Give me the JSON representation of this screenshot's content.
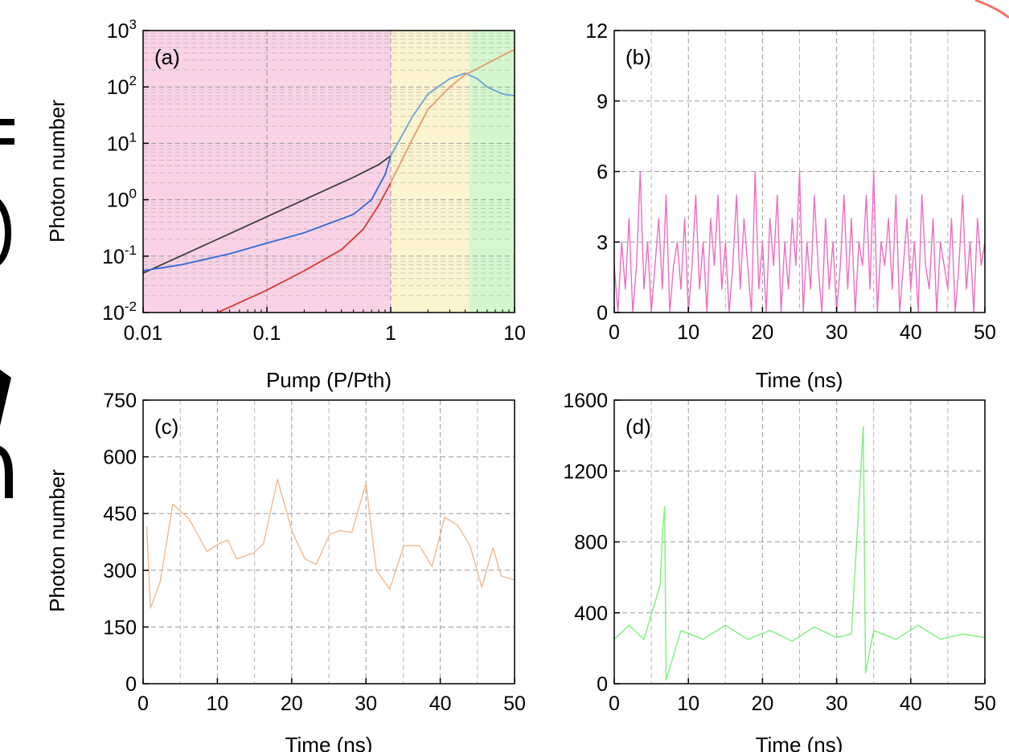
{
  "figure": {
    "panels": [
      {
        "id": "a",
        "label": "(a)",
        "ylabel": "Photon number",
        "xlabel": "Pump (P/Pth)",
        "xticks": [
          "0.01",
          "0.1",
          "1",
          "10"
        ],
        "ytick_exponents": [
          "-2",
          "-1",
          "0",
          "1",
          "2",
          "3"
        ]
      },
      {
        "id": "b",
        "label": "(b)",
        "ylabel": "",
        "xlabel": "Time (ns)",
        "xticks": [
          "0",
          "10",
          "20",
          "30",
          "40",
          "50"
        ],
        "yticks": [
          "0",
          "3",
          "6",
          "9",
          "12"
        ]
      },
      {
        "id": "c",
        "label": "(c)",
        "ylabel": "Photon number",
        "xlabel": "Time (ns)",
        "xticks": [
          "0",
          "10",
          "20",
          "30",
          "40",
          "50"
        ],
        "yticks": [
          "0",
          "150",
          "300",
          "450",
          "600",
          "750"
        ]
      },
      {
        "id": "d",
        "label": "(d)",
        "ylabel": "",
        "xlabel": "Time (ns)",
        "xticks": [
          "0",
          "10",
          "20",
          "30",
          "40",
          "50"
        ],
        "yticks": [
          "0",
          "400",
          "800",
          "1200",
          "1600"
        ]
      }
    ]
  },
  "chart_data": [
    {
      "type": "line",
      "panel": "a",
      "xscale": "log",
      "yscale": "log",
      "xlim": [
        0.01,
        10
      ],
      "ylim": [
        0.01,
        1000
      ],
      "grid": true,
      "regions": [
        {
          "x": [
            0.01,
            1
          ],
          "color": "#f9d2e6"
        },
        {
          "x": [
            1,
            4.3
          ],
          "color": "#fbf4cf"
        },
        {
          "x": [
            4.3,
            10
          ],
          "color": "#d4f7cf"
        }
      ],
      "series": [
        {
          "color": "#3f3f3f",
          "x": [
            0.01,
            0.02,
            0.05,
            0.1,
            0.2,
            0.5,
            0.8,
            1.0
          ],
          "y": [
            0.05,
            0.1,
            0.25,
            0.5,
            1.0,
            2.5,
            4.2,
            6.0
          ]
        },
        {
          "color": "#2e6bd6",
          "x": [
            0.01,
            0.02,
            0.05,
            0.1,
            0.2,
            0.5,
            0.7,
            0.9,
            1.0
          ],
          "y": [
            0.055,
            0.07,
            0.11,
            0.17,
            0.26,
            0.55,
            1.0,
            2.8,
            6.0
          ]
        },
        {
          "color": "#d93a2f",
          "x": [
            0.04,
            0.1,
            0.2,
            0.4,
            0.6,
            0.8,
            1.0
          ],
          "y": [
            0.01,
            0.025,
            0.055,
            0.13,
            0.3,
            0.8,
            2.0
          ]
        },
        {
          "color": "#6aa2d8",
          "x": [
            1.0,
            1.5,
            2.0,
            3.0,
            4.0,
            5.0,
            6.0,
            8.0,
            10.0
          ],
          "y": [
            6.0,
            30.0,
            75.0,
            140.0,
            175.0,
            140.0,
            100.0,
            75.0,
            70.0
          ]
        },
        {
          "color": "#e69a6b",
          "x": [
            1.0,
            1.5,
            2.0,
            3.0,
            4.0,
            5.0,
            6.0,
            8.0,
            10.0
          ],
          "y": [
            2.0,
            12.0,
            40.0,
            100.0,
            165.0,
            210.0,
            260.0,
            360.0,
            460.0
          ]
        }
      ]
    },
    {
      "type": "line",
      "panel": "b",
      "xlim": [
        0,
        50
      ],
      "ylim": [
        0,
        12
      ],
      "grid": true,
      "series": [
        {
          "color": "#f06cc2",
          "x": [
            0,
            0.5,
            1,
            1.5,
            2,
            2.5,
            3,
            3.5,
            4,
            4.5,
            5,
            5.5,
            6,
            6.5,
            7,
            7.5,
            8,
            8.5,
            9,
            9.5,
            10,
            10.5,
            11,
            11.5,
            12,
            12.5,
            13,
            13.5,
            14,
            14.5,
            15,
            15.5,
            16,
            16.5,
            17,
            17.5,
            18,
            18.5,
            19,
            19.5,
            20,
            20.5,
            21,
            21.5,
            22,
            22.5,
            23,
            23.5,
            24,
            24.5,
            25,
            25.5,
            26,
            26.5,
            27,
            27.5,
            28,
            28.5,
            29,
            29.5,
            30,
            30.5,
            31,
            31.5,
            32,
            32.5,
            33,
            33.5,
            34,
            34.5,
            35,
            35.5,
            36,
            36.5,
            37,
            37.5,
            38,
            38.5,
            39,
            39.5,
            40,
            40.5,
            41,
            41.5,
            42,
            42.5,
            43,
            43.5,
            44,
            44.5,
            45,
            45.5,
            46,
            46.5,
            47,
            47.5,
            48,
            48.5,
            49,
            49.5,
            50
          ],
          "y": [
            2,
            0,
            3,
            1,
            4,
            0,
            2,
            6,
            1,
            3,
            0,
            2,
            4,
            1,
            5,
            0,
            2,
            3,
            1,
            4,
            0,
            2,
            5,
            1,
            3,
            0,
            4,
            2,
            5,
            1,
            3,
            0,
            2,
            5,
            1,
            4,
            2,
            0,
            6,
            1,
            3,
            0,
            4,
            2,
            5,
            0,
            3,
            1,
            4,
            2,
            6,
            0,
            3,
            1,
            5,
            2,
            0,
            4,
            1,
            3,
            0,
            2,
            5,
            1,
            4,
            0,
            3,
            2,
            5,
            1,
            6,
            0,
            3,
            2,
            4,
            1,
            5,
            0,
            2,
            4,
            1,
            3,
            0,
            5,
            2,
            1,
            4,
            0,
            3,
            2,
            1,
            4,
            0,
            2,
            5,
            1,
            3,
            0,
            4,
            2,
            3
          ]
        }
      ]
    },
    {
      "type": "line",
      "panel": "c",
      "xlim": [
        0,
        50
      ],
      "ylim": [
        0,
        750
      ],
      "grid": true,
      "series": [
        {
          "color": "#f0b98e",
          "x": [
            0.5,
            1.0,
            2.3,
            4.0,
            6.2,
            8.6,
            10.2,
            11.4,
            12.6,
            14.8,
            16.2,
            18.1,
            20.1,
            21.8,
            23.3,
            25.1,
            26.5,
            28.1,
            30.0,
            31.4,
            33.2,
            35.1,
            37.2,
            38.9,
            40.6,
            42.3,
            44.0,
            45.6,
            47.1,
            48.2,
            49.9
          ],
          "y": [
            415,
            200,
            270,
            475,
            435,
            350,
            370,
            380,
            330,
            345,
            370,
            540,
            400,
            330,
            315,
            395,
            405,
            400,
            530,
            300,
            250,
            365,
            365,
            310,
            440,
            420,
            365,
            255,
            360,
            285,
            275
          ]
        }
      ]
    },
    {
      "type": "line",
      "panel": "d",
      "xlim": [
        0,
        50
      ],
      "ylim": [
        0,
        1600
      ],
      "grid": true,
      "series": [
        {
          "color": "#7df07a",
          "x": [
            0,
            2,
            4,
            6.2,
            6.5,
            6.8,
            7.0,
            9.0,
            12,
            15,
            18,
            21,
            24,
            27,
            30,
            32,
            33.6,
            33.9,
            35,
            38,
            41,
            44,
            47,
            50
          ],
          "y": [
            250,
            330,
            250,
            560,
            850,
            1000,
            20,
            300,
            250,
            330,
            250,
            300,
            240,
            320,
            260,
            280,
            1450,
            60,
            300,
            250,
            330,
            250,
            280,
            260
          ]
        }
      ]
    }
  ],
  "colors": {
    "axis": "#000000",
    "grid": "#9a9a9a",
    "curve_a_black": "#3f3f3f",
    "curve_a_blue": "#2e6bd6",
    "curve_a_red": "#d93a2f",
    "curve_a_lightblue": "#6aa2d8",
    "curve_a_orange": "#e69a6b",
    "panel_b_trace": "#f06cc2",
    "panel_c_trace": "#f0b98e",
    "panel_d_trace": "#7df07a",
    "corner_decoration": "#f27466"
  }
}
